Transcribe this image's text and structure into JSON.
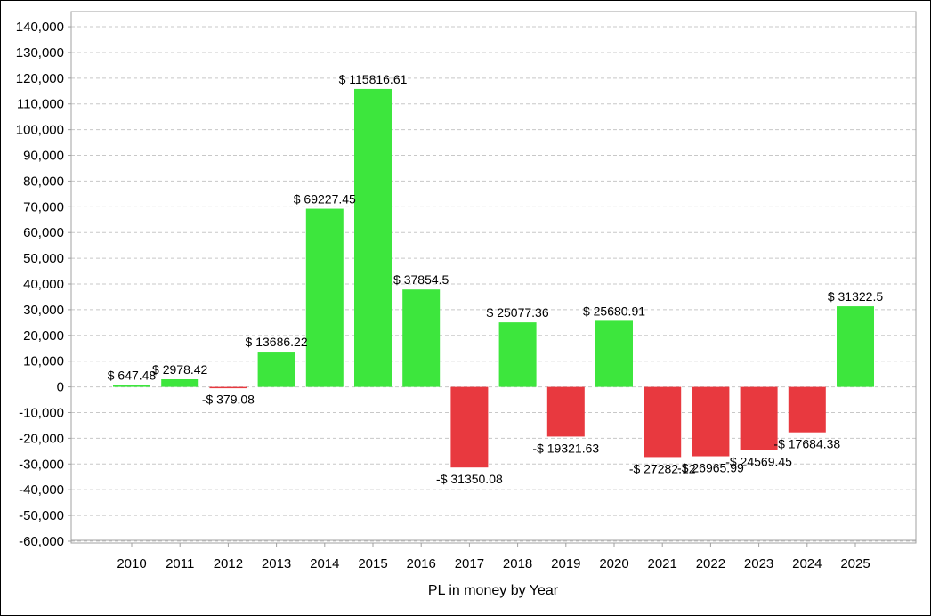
{
  "chart_data": {
    "type": "bar",
    "title": "",
    "xlabel": "PL in money by Year",
    "ylabel": "",
    "categories": [
      "2010",
      "2011",
      "2012",
      "2013",
      "2014",
      "2015",
      "2016",
      "2017",
      "2018",
      "2019",
      "2020",
      "2021",
      "2022",
      "2023",
      "2024",
      "2025"
    ],
    "values": [
      647.48,
      2978.42,
      -379.08,
      13686.22,
      69227.45,
      115816.61,
      37854.5,
      -31350.08,
      25077.36,
      -19321.63,
      25680.91,
      -27282.12,
      -26965.99,
      -24569.45,
      -17684.38,
      31322.5
    ],
    "data_labels": [
      "$ 647.48",
      "$ 2978.42",
      "-$ 379.08",
      "$ 13686.22",
      "$ 69227.45",
      "$ 115816.61",
      "$ 37854.5",
      "-$ 31350.08",
      "$ 25077.36",
      "-$ 19321.63",
      "$ 25680.91",
      "-$ 27282.12",
      "-$ 26965.99",
      "-$ 24569.45",
      "-$ 17684.38",
      "$ 31322.5"
    ],
    "yticks": [
      140000,
      130000,
      120000,
      110000,
      100000,
      90000,
      80000,
      70000,
      60000,
      50000,
      40000,
      30000,
      20000,
      10000,
      0,
      -10000,
      -20000,
      -30000,
      -40000,
      -50000,
      -60000
    ],
    "ytick_labels": [
      "140,000",
      "130,000",
      "120,000",
      "110,000",
      "100,000",
      "90,000",
      "80,000",
      "70,000",
      "60,000",
      "50,000",
      "40,000",
      "30,000",
      "20,000",
      "10,000",
      "0",
      "-10,000",
      "-20,000",
      "-30,000",
      "-40,000",
      "-50,000",
      "-60,000"
    ],
    "ylim": [
      -60700,
      145900
    ],
    "grid": true,
    "legend": "none",
    "colors": {
      "positive": "#3de63d",
      "negative": "#e8393f",
      "grid": "#c8c8c8",
      "axis": "#a0a0a0"
    }
  }
}
